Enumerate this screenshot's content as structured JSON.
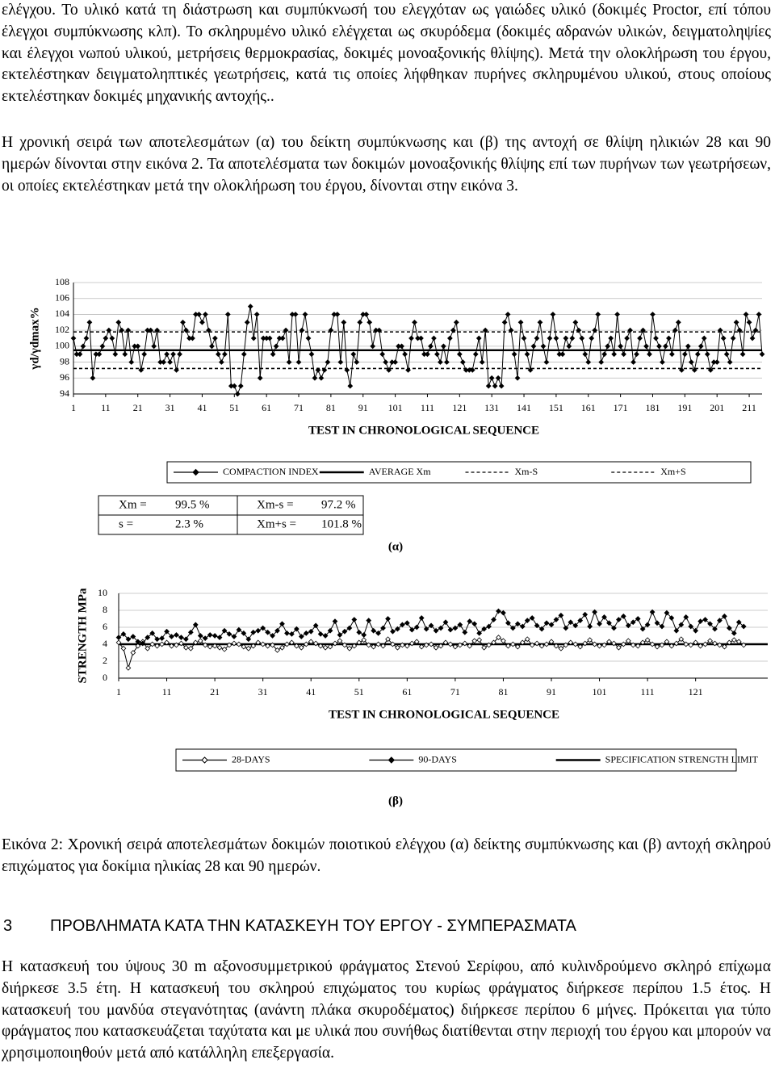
{
  "text_before": [
    "ελέγχου. Το υλικό κατά τη διάστρωση και συμπύκνωσή του ελεγχόταν ως γαιώδες υλικό (δοκιμές Proctor, επί τόπου έλεγχοι συμπύκνωσης κλπ). Το σκληρυμένο υλικό ελέγχεται ως σκυρόδεμα (δοκιμές αδρανών υλικών, δειγματοληψίες και έλεγχοι νωπού υλικού, μετρήσεις θερμοκρασίας, δοκιμές μονοαξονικής θλίψης). Μετά την ολοκλήρωση του έργου, εκτελέστηκαν δειγματοληπτικές γεωτρήσεις, κατά τις οποίες λήφθηκαν πυρήνες σκληρυμένου υλικού, στους οποίους εκτελέστηκαν δοκιμές μηχανικής αντοχής..",
    "Η χρονική σειρά των αποτελεσμάτων (α) του δείκτη συμπύκνωσης και (β) της αντοχή σε θλίψη ηλικιών 28 και 90 ημερών δίνονται στην εικόνα 2. Τα αποτελέσματα των δοκιμών μονοαξονικής θλίψης επί των πυρήνων των γεωτρήσεων, οι οποίες εκτελέστηκαν μετά την ολοκλήρωση του έργου, δίνονται στην εικόνα 3."
  ],
  "chart_data": [
    {
      "type": "line",
      "y_label": "γd/γdmax%",
      "x_label": "TEST IN CHRONOLOGICAL SEQUENCE",
      "panel_label": "(α)",
      "xlim": [
        1,
        215
      ],
      "xticks": [
        1,
        11,
        21,
        31,
        41,
        51,
        61,
        71,
        81,
        91,
        101,
        111,
        121,
        131,
        141,
        151,
        161,
        171,
        181,
        191,
        201,
        211
      ],
      "ylim": [
        94,
        108
      ],
      "yticks": [
        94,
        96,
        98,
        100,
        102,
        104,
        106,
        108
      ],
      "grid": true,
      "x": [
        1,
        2,
        3,
        4,
        5,
        6,
        7,
        8,
        9,
        10,
        11,
        12,
        13,
        14,
        15,
        16,
        17,
        18,
        19,
        20,
        21,
        22,
        23,
        24,
        25,
        26,
        27,
        28,
        29,
        30,
        31,
        32,
        33,
        34,
        35,
        36,
        37,
        38,
        39,
        40,
        41,
        42,
        43,
        44,
        45,
        46,
        47,
        48,
        49,
        50,
        51,
        52,
        53,
        54,
        55,
        56,
        57,
        58,
        59,
        60,
        61,
        62,
        63,
        64,
        65,
        66,
        67,
        68,
        69,
        70,
        71,
        72,
        73,
        74,
        75,
        76,
        77,
        78,
        79,
        80,
        81,
        82,
        83,
        84,
        85,
        86,
        87,
        88,
        89,
        90,
        91,
        92,
        93,
        94,
        95,
        96,
        97,
        98,
        99,
        100,
        101,
        102,
        103,
        104,
        105,
        106,
        107,
        108,
        109,
        110,
        111,
        112,
        113,
        114,
        115,
        116,
        117,
        118,
        119,
        120,
        121,
        122,
        123,
        124,
        125,
        126,
        127,
        128,
        129,
        130,
        131,
        132,
        133,
        134,
        135,
        136,
        137,
        138,
        139,
        140,
        141,
        142,
        143,
        144,
        145,
        146,
        147,
        148,
        149,
        150,
        151,
        152,
        153,
        154,
        155,
        156,
        157,
        158,
        159,
        160,
        161,
        162,
        163,
        164,
        165,
        166,
        167,
        168,
        169,
        170,
        171,
        172,
        173,
        174,
        175,
        176,
        177,
        178,
        179,
        180,
        181,
        182,
        183,
        184,
        185,
        186,
        187,
        188,
        189,
        190,
        191,
        192,
        193,
        194,
        195,
        196,
        197,
        198,
        199,
        200,
        201,
        202,
        203,
        204,
        205,
        206,
        207,
        208,
        209,
        210,
        211,
        212,
        213,
        214,
        215
      ],
      "series": [
        {
          "name": "COMPACTION INDEX",
          "color": "#000000",
          "marker": "filled",
          "values": [
            101,
            99,
            99,
            100,
            101,
            103,
            96,
            99,
            99,
            100,
            101,
            102,
            101,
            99,
            103,
            102,
            99,
            102,
            98,
            100,
            100,
            97,
            99,
            102,
            102,
            100,
            102,
            98,
            98,
            99,
            98,
            99,
            97,
            99,
            103,
            102,
            101,
            101,
            104,
            104,
            103,
            104,
            102,
            100,
            101,
            99,
            98,
            99,
            104,
            95,
            95,
            94,
            95,
            99,
            103,
            105,
            101,
            104,
            96,
            101,
            101,
            101,
            99,
            100,
            101,
            101,
            102,
            98,
            104,
            104,
            98,
            102,
            104,
            101,
            99,
            96,
            97,
            96,
            97,
            98,
            102,
            104,
            104,
            98,
            103,
            97,
            95,
            99,
            98,
            103,
            104,
            104,
            103,
            100,
            102,
            102,
            99,
            98,
            97,
            98,
            98,
            100,
            100,
            99,
            97,
            101,
            103,
            101,
            101,
            99,
            99,
            100,
            101,
            99,
            98,
            100,
            98,
            101,
            102,
            103,
            99,
            98,
            97,
            97,
            97,
            99,
            101,
            98,
            102,
            95,
            96,
            95,
            96,
            95,
            103,
            104,
            102,
            99,
            96,
            103,
            101,
            99,
            97,
            100,
            101,
            103,
            100,
            98,
            101,
            104,
            101,
            99,
            99,
            101,
            100,
            101,
            103,
            102,
            101,
            99,
            98,
            101,
            102,
            104,
            98,
            99,
            100,
            101,
            99,
            104,
            100,
            99,
            101,
            102,
            98,
            99,
            101,
            102,
            100,
            99,
            104,
            101,
            100,
            98,
            100,
            101,
            99,
            102,
            103,
            97,
            99,
            100,
            98,
            97,
            99,
            100,
            101,
            99,
            97,
            98,
            98,
            102,
            101,
            99,
            98,
            101,
            103,
            102,
            99,
            104,
            103,
            101,
            102,
            104,
            99
          ]
        }
      ],
      "reference_lines": [
        {
          "name": "AVERAGE Xm",
          "value": 99.5,
          "style": "solid"
        },
        {
          "name": "Xm-S",
          "value": 97.2,
          "style": "dashed"
        },
        {
          "name": "Xm+S",
          "value": 101.8,
          "style": "dashed"
        }
      ],
      "stats_table": [
        [
          "Xm =",
          "99.5 %",
          "Xm-s =",
          "97.2 %"
        ],
        [
          "s =",
          "2.3 %",
          "Xm+s =",
          "101.8 %"
        ]
      ]
    },
    {
      "type": "line",
      "y_label": "STRENGTH MPa",
      "x_label": "TEST IN CHRONOLOGICAL SEQUENCE",
      "panel_label": "(β)",
      "xlim": [
        1,
        136
      ],
      "xticks": [
        1,
        11,
        21,
        31,
        41,
        51,
        61,
        71,
        81,
        91,
        101,
        111,
        121
      ],
      "ylim": [
        0,
        10
      ],
      "yticks": [
        0,
        2,
        4,
        6,
        8,
        10
      ],
      "grid": true,
      "x": [
        1,
        2,
        3,
        4,
        5,
        6,
        7,
        8,
        9,
        10,
        11,
        12,
        13,
        14,
        15,
        16,
        17,
        18,
        19,
        20,
        21,
        22,
        23,
        24,
        25,
        26,
        27,
        28,
        29,
        30,
        31,
        32,
        33,
        34,
        35,
        36,
        37,
        38,
        39,
        40,
        41,
        42,
        43,
        44,
        45,
        46,
        47,
        48,
        49,
        50,
        51,
        52,
        53,
        54,
        55,
        56,
        57,
        58,
        59,
        60,
        61,
        62,
        63,
        64,
        65,
        66,
        67,
        68,
        69,
        70,
        71,
        72,
        73,
        74,
        75,
        76,
        77,
        78,
        79,
        80,
        81,
        82,
        83,
        84,
        85,
        86,
        87,
        88,
        89,
        90,
        91,
        92,
        93,
        94,
        95,
        96,
        97,
        98,
        99,
        100,
        101,
        102,
        103,
        104,
        105,
        106,
        107,
        108,
        109,
        110,
        111,
        112,
        113,
        114,
        115,
        116,
        117,
        118,
        119,
        120,
        121,
        122,
        123,
        124,
        125,
        126,
        127,
        128,
        129,
        130,
        131
      ],
      "series": [
        {
          "name": "28-DAYS",
          "color": "#000000",
          "marker": "open",
          "values": [
            4.2,
            3.5,
            1.2,
            3,
            3.8,
            4.3,
            3.5,
            4,
            3.8,
            4,
            4.2,
            3.8,
            3.9,
            4.1,
            3.6,
            3.5,
            4.2,
            4.4,
            3.9,
            3.7,
            3.8,
            3.6,
            3.4,
            3.9,
            4.1,
            4,
            3.7,
            3.5,
            3.8,
            4.2,
            4,
            3.8,
            3.9,
            3.3,
            3.6,
            4,
            4.2,
            3.8,
            3.6,
            4,
            4.3,
            4.1,
            3.8,
            3.6,
            3.7,
            4.1,
            4.4,
            3.9,
            3.5,
            3.8,
            4.2,
            4.5,
            3.9,
            3.7,
            4,
            3.8,
            4.6,
            4,
            3.6,
            3.9,
            3.8,
            4.1,
            4.3,
            3.7,
            3.9,
            4,
            3.6,
            3.8,
            4.2,
            4,
            3.7,
            3.9,
            4.1,
            3.8,
            4.4,
            4.5,
            3.6,
            3.9,
            4.2,
            4.8,
            4.4,
            3.8,
            4,
            3.7,
            4.2,
            4.6,
            3.9,
            4.1,
            3.8,
            4,
            4.3,
            3.8,
            3.5,
            3.9,
            4.2,
            4,
            3.7,
            4.1,
            4.5,
            4,
            3.8,
            3.9,
            4.3,
            4.1,
            3.6,
            4,
            4.4,
            3.9,
            3.8,
            4.2,
            4.5,
            4,
            3.7,
            3.9,
            4.3,
            3.8,
            4.1,
            4.6,
            4,
            3.9,
            4.2,
            3.8,
            4,
            4.4,
            4.1,
            3.9,
            3.7,
            4.2,
            4.5,
            4.3,
            3.9
          ]
        },
        {
          "name": "90-DAYS",
          "color": "#000000",
          "marker": "filled",
          "values": [
            4.8,
            5.2,
            4.6,
            4.9,
            4.3,
            4.1,
            4.8,
            5.3,
            4.6,
            4.7,
            5.5,
            4.9,
            5.1,
            4.8,
            4.6,
            5.4,
            6.3,
            5,
            4.7,
            5.1,
            5,
            4.8,
            5.6,
            5.2,
            4.9,
            5.7,
            5.3,
            4.6,
            5.4,
            5.6,
            5.9,
            5.4,
            5,
            5.6,
            6.4,
            5.3,
            5.2,
            5.8,
            4.9,
            5.3,
            5.5,
            6.2,
            5.2,
            5,
            5.6,
            6.7,
            5.1,
            5.5,
            5.9,
            6.9,
            5.4,
            5.1,
            6.8,
            5.6,
            5.3,
            5.9,
            7,
            5.5,
            5.8,
            6.3,
            6.5,
            5.7,
            6,
            7.1,
            5.8,
            6.2,
            5.6,
            5.9,
            6.6,
            5.7,
            5.9,
            6.3,
            5.4,
            6.7,
            6.4,
            5.3,
            5.8,
            6.1,
            6.9,
            7.9,
            7.7,
            6.5,
            5.9,
            6.4,
            6.1,
            6.8,
            7.1,
            6.2,
            5.8,
            6.5,
            6.3,
            6.9,
            7.4,
            5.9,
            6.6,
            6.2,
            6.8,
            7.5,
            6.1,
            7.8,
            6.4,
            7.2,
            6.5,
            5.9,
            6.9,
            7.3,
            6.2,
            6.6,
            7,
            5.8,
            6.3,
            7.8,
            6.5,
            6.1,
            7.7,
            7.1,
            5.6,
            6.3,
            7.2,
            6.1,
            5.6,
            6.7,
            6.9,
            6.4,
            5.8,
            6.8,
            7.3,
            5.9,
            5.3,
            6.6,
            6.1
          ]
        }
      ],
      "reference_lines": [
        {
          "name": "SPECIFICATION STRENGTH LIMIT",
          "value": 4,
          "style": "solid"
        }
      ]
    }
  ],
  "caption": "Εικόνα 2: Χρονική σειρά αποτελεσμάτων δοκιμών ποιοτικού ελέγχου (α) δείκτης συμπύκνωσης και (β) αντοχή σκληρού επιχώματος για δοκίμια ηλικίας 28 και 90 ημερών.",
  "section": {
    "number": "3",
    "title": "ΠΡΟΒΛΗΜΑΤΑ ΚΑΤΑ ΤΗΝ ΚΑΤΑΣΚΕΥΗ ΤΟΥ ΕΡΓΟΥ - ΣΥΜΠΕΡΑΣΜΑΤΑ"
  },
  "text_after": [
    "Η κατασκευή του ύψους 30 m αξονοσυμμετρικού φράγματος Στενού Σερίφου, από κυλινδρούμενο σκληρό επίχωμα διήρκεσε 3.5 έτη. Η κατασκευή του σκληρού επιχώματος του κυρίως φράγματος διήρκεσε περίπου 1.5 έτος. Η κατασκευή του μανδύα στεγανότητας (ανάντη πλάκα σκυροδέματος) διήρκεσε περίπου 6 μήνες. Πρόκειται για τύπο φράγματος που κατασκευάζεται ταχύτατα και με υλικά που συνήθως διατίθενται στην περιοχή του έργου και μπορούν να χρησιμοποιηθούν μετά από κατάλληλη επεξεργασία."
  ]
}
